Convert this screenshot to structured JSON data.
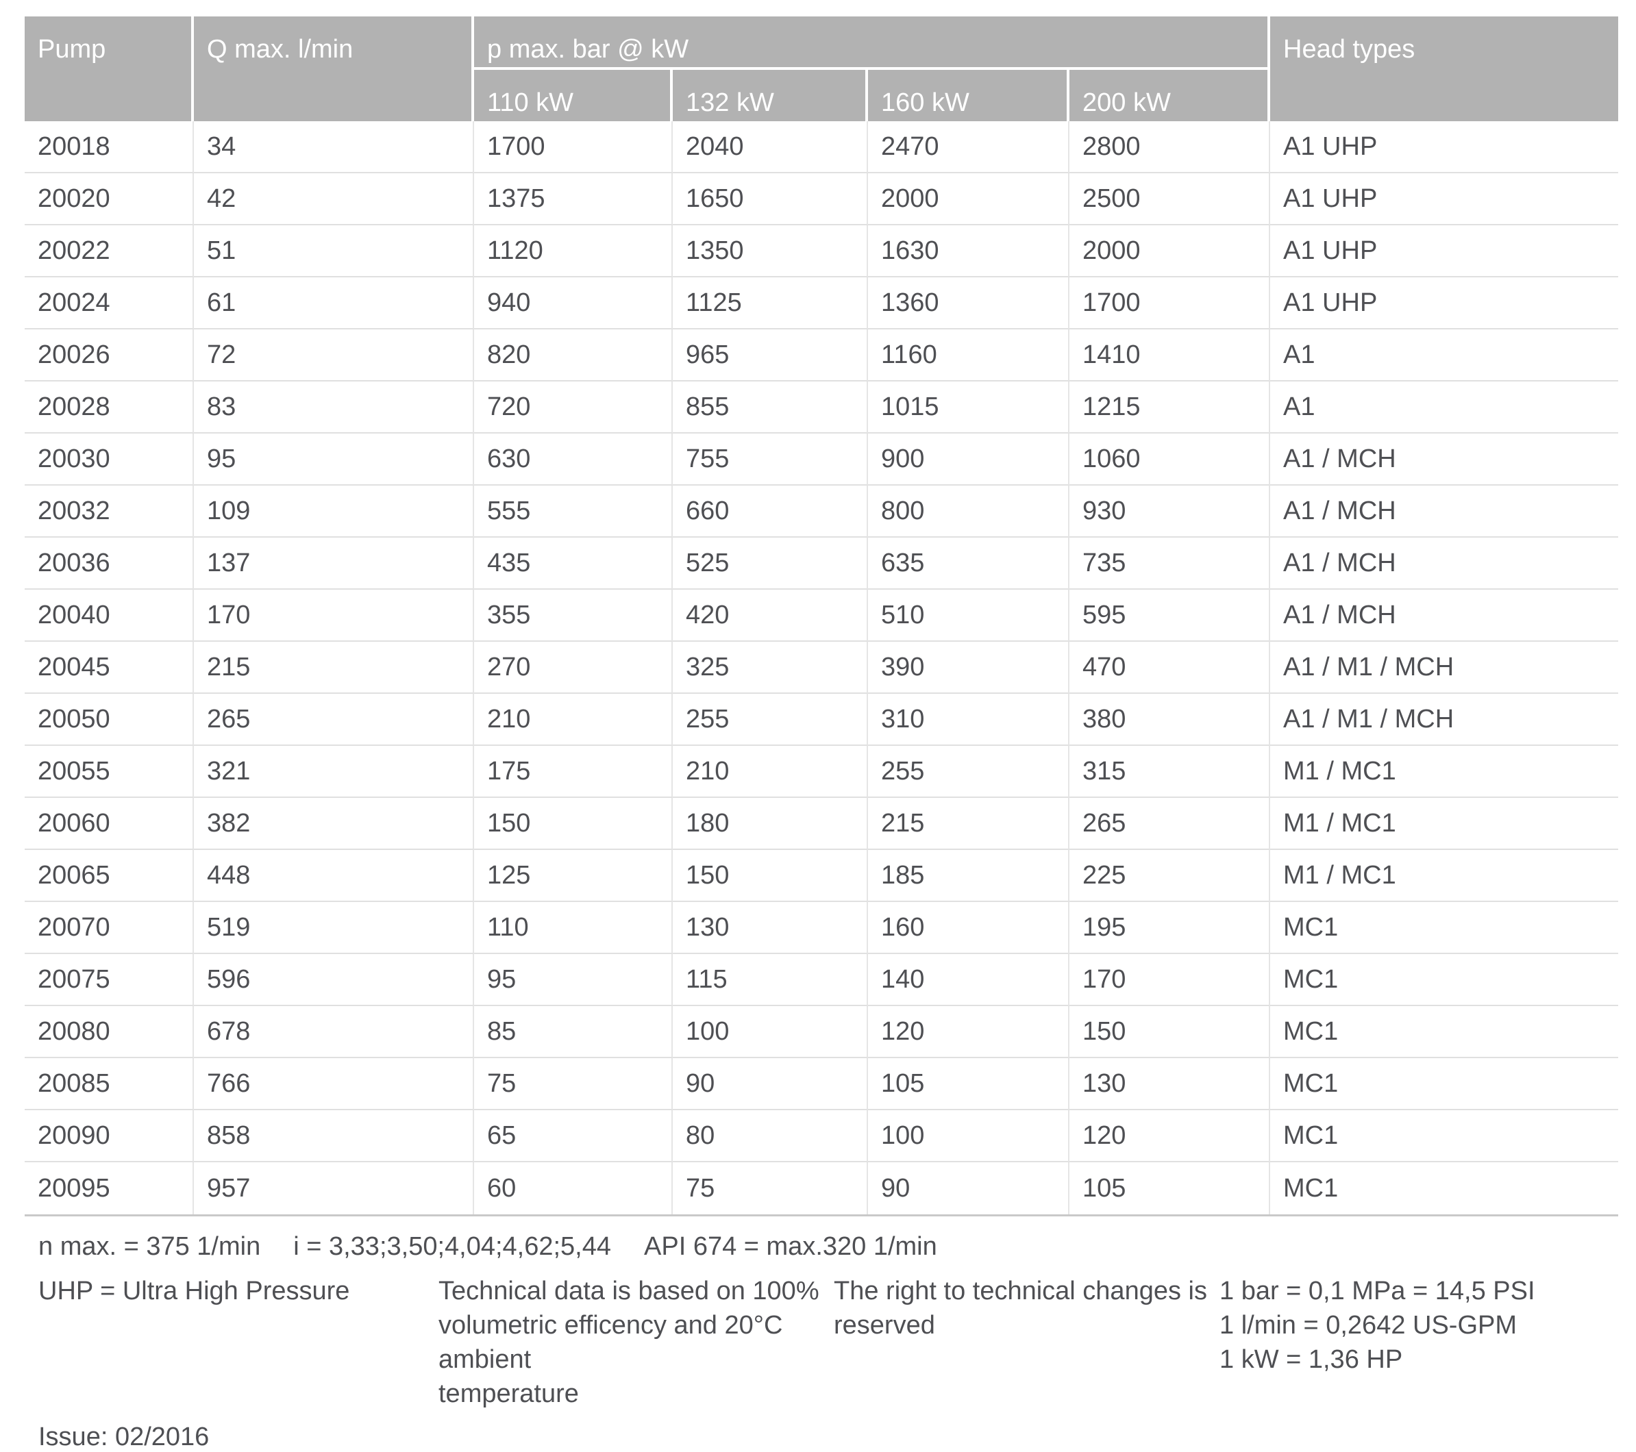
{
  "table": {
    "header": {
      "pump": "Pump",
      "q_max": "Q max. l/min",
      "p_max_group": "p max. bar @ kW",
      "kw_columns": [
        "110 kW",
        "132 kW",
        "160 kW",
        "200 kW"
      ],
      "head_types": "Head types"
    },
    "rows": [
      {
        "pump": "20018",
        "q_max": "34",
        "kw": [
          "1700",
          "2040",
          "2470",
          "2800"
        ],
        "head": "A1 UHP"
      },
      {
        "pump": "20020",
        "q_max": "42",
        "kw": [
          "1375",
          "1650",
          "2000",
          "2500"
        ],
        "head": "A1 UHP"
      },
      {
        "pump": "20022",
        "q_max": "51",
        "kw": [
          "1120",
          "1350",
          "1630",
          "2000"
        ],
        "head": "A1 UHP"
      },
      {
        "pump": "20024",
        "q_max": "61",
        "kw": [
          "940",
          "1125",
          "1360",
          "1700"
        ],
        "head": "A1 UHP"
      },
      {
        "pump": "20026",
        "q_max": "72",
        "kw": [
          "820",
          "965",
          "1160",
          "1410"
        ],
        "head": "A1"
      },
      {
        "pump": "20028",
        "q_max": "83",
        "kw": [
          "720",
          "855",
          "1015",
          "1215"
        ],
        "head": "A1"
      },
      {
        "pump": "20030",
        "q_max": "95",
        "kw": [
          "630",
          "755",
          "900",
          "1060"
        ],
        "head": "A1 / MCH"
      },
      {
        "pump": "20032",
        "q_max": "109",
        "kw": [
          "555",
          "660",
          "800",
          "930"
        ],
        "head": "A1 / MCH"
      },
      {
        "pump": "20036",
        "q_max": "137",
        "kw": [
          "435",
          "525",
          "635",
          "735"
        ],
        "head": "A1 / MCH"
      },
      {
        "pump": "20040",
        "q_max": "170",
        "kw": [
          "355",
          "420",
          "510",
          "595"
        ],
        "head": "A1 / MCH"
      },
      {
        "pump": "20045",
        "q_max": "215",
        "kw": [
          "270",
          "325",
          "390",
          "470"
        ],
        "head": "A1 / M1 / MCH"
      },
      {
        "pump": "20050",
        "q_max": "265",
        "kw": [
          "210",
          "255",
          "310",
          "380"
        ],
        "head": "A1 / M1 / MCH"
      },
      {
        "pump": "20055",
        "q_max": "321",
        "kw": [
          "175",
          "210",
          "255",
          "315"
        ],
        "head": "M1 / MC1"
      },
      {
        "pump": "20060",
        "q_max": "382",
        "kw": [
          "150",
          "180",
          "215",
          "265"
        ],
        "head": "M1 / MC1"
      },
      {
        "pump": "20065",
        "q_max": "448",
        "kw": [
          "125",
          "150",
          "185",
          "225"
        ],
        "head": "M1 / MC1"
      },
      {
        "pump": "20070",
        "q_max": "519",
        "kw": [
          "110",
          "130",
          "160",
          "195"
        ],
        "head": "MC1"
      },
      {
        "pump": "20075",
        "q_max": "596",
        "kw": [
          "95",
          "115",
          "140",
          "170"
        ],
        "head": "MC1"
      },
      {
        "pump": "20080",
        "q_max": "678",
        "kw": [
          "85",
          "100",
          "120",
          "150"
        ],
        "head": "MC1"
      },
      {
        "pump": "20085",
        "q_max": "766",
        "kw": [
          "75",
          "90",
          "105",
          "130"
        ],
        "head": "MC1"
      },
      {
        "pump": "20090",
        "q_max": "858",
        "kw": [
          "65",
          "80",
          "100",
          "120"
        ],
        "head": "MC1"
      },
      {
        "pump": "20095",
        "q_max": "957",
        "kw": [
          "60",
          "75",
          "90",
          "105"
        ],
        "head": "MC1"
      }
    ]
  },
  "footnotes": {
    "specs": [
      "n max. = 375 1/min",
      "i = 3,33;3,50;4,04;4,62;5,44",
      "API 674 = max.320 1/min"
    ],
    "uhp": "UHP = Ultra High Pressure",
    "technical": [
      "Technical data is based on 100%",
      "volumetric efficency and 20°C ambient",
      "temperature"
    ],
    "rights": "The right to technical changes is reserved",
    "conversions": [
      "1 bar = 0,1 MPa = 14,5 PSI",
      "1 l/min = 0,2642 US-GPM",
      "1 kW = 1,36 HP"
    ],
    "issue": "Issue: 02/2016"
  },
  "colors": {
    "header_bg": "#b2b2b2",
    "header_text": "#ffffff",
    "body_text": "#4e4f53",
    "row_divider": "#e0e0e0",
    "column_divider": "#e5e5e5",
    "table_bottom_border": "#c9c9c9"
  }
}
